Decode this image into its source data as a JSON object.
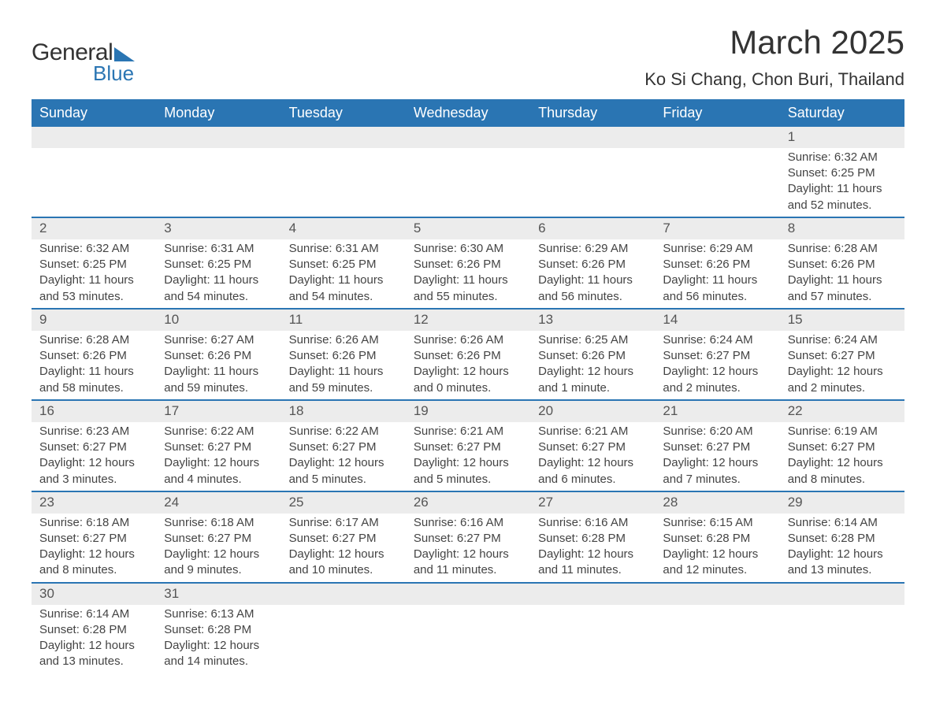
{
  "brand": {
    "general": "General",
    "blue": "Blue"
  },
  "title": "March 2025",
  "subtitle": "Ko Si Chang, Chon Buri, Thailand",
  "day_names": [
    "Sunday",
    "Monday",
    "Tuesday",
    "Wednesday",
    "Thursday",
    "Friday",
    "Saturday"
  ],
  "colors": {
    "header_bg": "#2a75b3",
    "header_text": "#ffffff",
    "daynum_bg": "#ececec",
    "daynum_text": "#555555",
    "body_text": "#444444",
    "divider": "#2a75b3",
    "page_bg": "#ffffff"
  },
  "typography": {
    "title_fontsize": 42,
    "subtitle_fontsize": 22,
    "day_header_fontsize": 18,
    "daynum_fontsize": 17,
    "cell_fontsize": 15
  },
  "labels": {
    "sunrise": "Sunrise:",
    "sunset": "Sunset:",
    "daylight": "Daylight:"
  },
  "weeks": [
    [
      null,
      null,
      null,
      null,
      null,
      null,
      {
        "day": "1",
        "sunrise": "6:32 AM",
        "sunset": "6:25 PM",
        "daylight": "11 hours and 52 minutes."
      }
    ],
    [
      {
        "day": "2",
        "sunrise": "6:32 AM",
        "sunset": "6:25 PM",
        "daylight": "11 hours and 53 minutes."
      },
      {
        "day": "3",
        "sunrise": "6:31 AM",
        "sunset": "6:25 PM",
        "daylight": "11 hours and 54 minutes."
      },
      {
        "day": "4",
        "sunrise": "6:31 AM",
        "sunset": "6:25 PM",
        "daylight": "11 hours and 54 minutes."
      },
      {
        "day": "5",
        "sunrise": "6:30 AM",
        "sunset": "6:26 PM",
        "daylight": "11 hours and 55 minutes."
      },
      {
        "day": "6",
        "sunrise": "6:29 AM",
        "sunset": "6:26 PM",
        "daylight": "11 hours and 56 minutes."
      },
      {
        "day": "7",
        "sunrise": "6:29 AM",
        "sunset": "6:26 PM",
        "daylight": "11 hours and 56 minutes."
      },
      {
        "day": "8",
        "sunrise": "6:28 AM",
        "sunset": "6:26 PM",
        "daylight": "11 hours and 57 minutes."
      }
    ],
    [
      {
        "day": "9",
        "sunrise": "6:28 AM",
        "sunset": "6:26 PM",
        "daylight": "11 hours and 58 minutes."
      },
      {
        "day": "10",
        "sunrise": "6:27 AM",
        "sunset": "6:26 PM",
        "daylight": "11 hours and 59 minutes."
      },
      {
        "day": "11",
        "sunrise": "6:26 AM",
        "sunset": "6:26 PM",
        "daylight": "11 hours and 59 minutes."
      },
      {
        "day": "12",
        "sunrise": "6:26 AM",
        "sunset": "6:26 PM",
        "daylight": "12 hours and 0 minutes."
      },
      {
        "day": "13",
        "sunrise": "6:25 AM",
        "sunset": "6:26 PM",
        "daylight": "12 hours and 1 minute."
      },
      {
        "day": "14",
        "sunrise": "6:24 AM",
        "sunset": "6:27 PM",
        "daylight": "12 hours and 2 minutes."
      },
      {
        "day": "15",
        "sunrise": "6:24 AM",
        "sunset": "6:27 PM",
        "daylight": "12 hours and 2 minutes."
      }
    ],
    [
      {
        "day": "16",
        "sunrise": "6:23 AM",
        "sunset": "6:27 PM",
        "daylight": "12 hours and 3 minutes."
      },
      {
        "day": "17",
        "sunrise": "6:22 AM",
        "sunset": "6:27 PM",
        "daylight": "12 hours and 4 minutes."
      },
      {
        "day": "18",
        "sunrise": "6:22 AM",
        "sunset": "6:27 PM",
        "daylight": "12 hours and 5 minutes."
      },
      {
        "day": "19",
        "sunrise": "6:21 AM",
        "sunset": "6:27 PM",
        "daylight": "12 hours and 5 minutes."
      },
      {
        "day": "20",
        "sunrise": "6:21 AM",
        "sunset": "6:27 PM",
        "daylight": "12 hours and 6 minutes."
      },
      {
        "day": "21",
        "sunrise": "6:20 AM",
        "sunset": "6:27 PM",
        "daylight": "12 hours and 7 minutes."
      },
      {
        "day": "22",
        "sunrise": "6:19 AM",
        "sunset": "6:27 PM",
        "daylight": "12 hours and 8 minutes."
      }
    ],
    [
      {
        "day": "23",
        "sunrise": "6:18 AM",
        "sunset": "6:27 PM",
        "daylight": "12 hours and 8 minutes."
      },
      {
        "day": "24",
        "sunrise": "6:18 AM",
        "sunset": "6:27 PM",
        "daylight": "12 hours and 9 minutes."
      },
      {
        "day": "25",
        "sunrise": "6:17 AM",
        "sunset": "6:27 PM",
        "daylight": "12 hours and 10 minutes."
      },
      {
        "day": "26",
        "sunrise": "6:16 AM",
        "sunset": "6:27 PM",
        "daylight": "12 hours and 11 minutes."
      },
      {
        "day": "27",
        "sunrise": "6:16 AM",
        "sunset": "6:28 PM",
        "daylight": "12 hours and 11 minutes."
      },
      {
        "day": "28",
        "sunrise": "6:15 AM",
        "sunset": "6:28 PM",
        "daylight": "12 hours and 12 minutes."
      },
      {
        "day": "29",
        "sunrise": "6:14 AM",
        "sunset": "6:28 PM",
        "daylight": "12 hours and 13 minutes."
      }
    ],
    [
      {
        "day": "30",
        "sunrise": "6:14 AM",
        "sunset": "6:28 PM",
        "daylight": "12 hours and 13 minutes."
      },
      {
        "day": "31",
        "sunrise": "6:13 AM",
        "sunset": "6:28 PM",
        "daylight": "12 hours and 14 minutes."
      },
      null,
      null,
      null,
      null,
      null
    ]
  ]
}
